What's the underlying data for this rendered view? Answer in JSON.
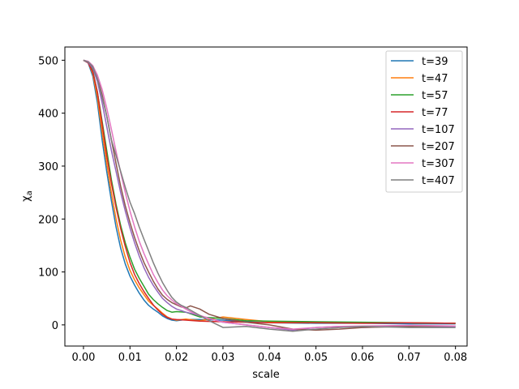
{
  "chart_data": {
    "type": "line",
    "title": "",
    "xlabel": "scale",
    "ylabel": "χa",
    "ylabel_main": "χ",
    "ylabel_sub": "a",
    "xlim": [
      -0.004,
      0.0825
    ],
    "ylim": [
      -40,
      525
    ],
    "xticks": [
      0.0,
      0.01,
      0.02,
      0.03,
      0.04,
      0.05,
      0.06,
      0.07,
      0.08
    ],
    "xtick_labels": [
      "0.00",
      "0.01",
      "0.02",
      "0.03",
      "0.04",
      "0.05",
      "0.06",
      "0.07",
      "0.08"
    ],
    "yticks": [
      0,
      100,
      200,
      300,
      400,
      500
    ],
    "ytick_labels": [
      "0",
      "100",
      "200",
      "300",
      "400",
      "500"
    ],
    "grid": false,
    "legend": "top-right",
    "series": [
      {
        "name": "t=39",
        "color": "#1f77b4",
        "x": [
          0.0,
          0.001,
          0.002,
          0.003,
          0.004,
          0.005,
          0.006,
          0.007,
          0.008,
          0.009,
          0.01,
          0.011,
          0.012,
          0.013,
          0.014,
          0.015,
          0.016,
          0.017,
          0.018,
          0.019,
          0.02,
          0.022,
          0.025,
          0.03,
          0.035,
          0.04,
          0.05,
          0.06,
          0.07,
          0.08
        ],
        "y": [
          500,
          495,
          470,
          420,
          350,
          290,
          235,
          185,
          145,
          115,
          92,
          75,
          60,
          47,
          37,
          30,
          24,
          17,
          12,
          9,
          8,
          10,
          10,
          9,
          6,
          4,
          3,
          3,
          2,
          2
        ]
      },
      {
        "name": "t=47",
        "color": "#ff7f0e",
        "x": [
          0.0,
          0.001,
          0.002,
          0.003,
          0.004,
          0.005,
          0.006,
          0.007,
          0.008,
          0.009,
          0.01,
          0.011,
          0.012,
          0.013,
          0.014,
          0.015,
          0.016,
          0.017,
          0.018,
          0.019,
          0.02,
          0.022,
          0.025,
          0.03,
          0.035,
          0.04,
          0.05,
          0.06,
          0.07,
          0.08
        ],
        "y": [
          500,
          496,
          475,
          430,
          365,
          305,
          250,
          200,
          160,
          128,
          103,
          85,
          70,
          57,
          45,
          37,
          30,
          22,
          15,
          11,
          9,
          11,
          8,
          15,
          10,
          6,
          5,
          4,
          4,
          3
        ]
      },
      {
        "name": "t=57",
        "color": "#2ca02c",
        "x": [
          0.0,
          0.001,
          0.002,
          0.003,
          0.004,
          0.005,
          0.006,
          0.007,
          0.008,
          0.009,
          0.01,
          0.011,
          0.012,
          0.013,
          0.014,
          0.015,
          0.016,
          0.017,
          0.018,
          0.019,
          0.02,
          0.022,
          0.025,
          0.03,
          0.035,
          0.04,
          0.05,
          0.06,
          0.07,
          0.08
        ],
        "y": [
          500,
          497,
          480,
          440,
          385,
          330,
          275,
          228,
          188,
          155,
          128,
          105,
          88,
          73,
          58,
          48,
          40,
          33,
          27,
          24,
          25,
          24,
          15,
          12,
          8,
          7,
          6,
          5,
          4,
          3
        ]
      },
      {
        "name": "t=77",
        "color": "#d62728",
        "x": [
          0.0,
          0.001,
          0.002,
          0.003,
          0.004,
          0.005,
          0.006,
          0.007,
          0.008,
          0.009,
          0.01,
          0.011,
          0.012,
          0.013,
          0.014,
          0.015,
          0.016,
          0.017,
          0.018,
          0.019,
          0.02,
          0.022,
          0.025,
          0.03,
          0.035,
          0.04,
          0.05,
          0.06,
          0.07,
          0.08
        ],
        "y": [
          500,
          495,
          478,
          440,
          380,
          320,
          268,
          222,
          182,
          148,
          118,
          95,
          78,
          63,
          50,
          38,
          28,
          20,
          14,
          11,
          10,
          9,
          7,
          6,
          5,
          4,
          4,
          3,
          4,
          3
        ]
      },
      {
        "name": "t=107",
        "color": "#9467bd",
        "x": [
          0.0,
          0.001,
          0.002,
          0.003,
          0.004,
          0.005,
          0.006,
          0.007,
          0.008,
          0.009,
          0.01,
          0.011,
          0.012,
          0.013,
          0.014,
          0.015,
          0.016,
          0.017,
          0.018,
          0.019,
          0.02,
          0.021,
          0.022,
          0.024,
          0.026,
          0.028,
          0.03,
          0.035,
          0.04,
          0.045,
          0.05,
          0.055,
          0.06,
          0.07,
          0.08
        ],
        "y": [
          500,
          496,
          485,
          460,
          420,
          375,
          330,
          290,
          250,
          215,
          183,
          155,
          130,
          108,
          90,
          75,
          62,
          50,
          42,
          35,
          30,
          27,
          24,
          20,
          15,
          10,
          5,
          0,
          -5,
          -10,
          -5,
          -3,
          -5,
          -2,
          -4
        ]
      },
      {
        "name": "t=207",
        "color": "#8c564b",
        "x": [
          0.0,
          0.001,
          0.002,
          0.003,
          0.004,
          0.005,
          0.006,
          0.007,
          0.008,
          0.009,
          0.01,
          0.011,
          0.012,
          0.013,
          0.014,
          0.015,
          0.016,
          0.017,
          0.018,
          0.019,
          0.02,
          0.021,
          0.022,
          0.023,
          0.025,
          0.027,
          0.03,
          0.035,
          0.04,
          0.045,
          0.05,
          0.055,
          0.06,
          0.07,
          0.08
        ],
        "y": [
          500,
          497,
          488,
          468,
          435,
          395,
          350,
          305,
          262,
          225,
          193,
          165,
          140,
          118,
          100,
          83,
          68,
          56,
          48,
          42,
          38,
          34,
          32,
          36,
          30,
          20,
          12,
          5,
          0,
          -8,
          -10,
          -8,
          -5,
          -3,
          -2
        ]
      },
      {
        "name": "t=307",
        "color": "#e377c2",
        "x": [
          0.0,
          0.001,
          0.002,
          0.003,
          0.004,
          0.005,
          0.006,
          0.007,
          0.008,
          0.009,
          0.01,
          0.011,
          0.012,
          0.013,
          0.014,
          0.015,
          0.016,
          0.017,
          0.018,
          0.019,
          0.02,
          0.021,
          0.022,
          0.023,
          0.025,
          0.027,
          0.03,
          0.035,
          0.04,
          0.045,
          0.05,
          0.055,
          0.06,
          0.07,
          0.08
        ],
        "y": [
          500,
          498,
          490,
          472,
          445,
          410,
          370,
          328,
          288,
          250,
          215,
          185,
          158,
          135,
          115,
          96,
          80,
          66,
          55,
          47,
          40,
          35,
          30,
          25,
          18,
          12,
          5,
          0,
          -5,
          -8,
          -5,
          -3,
          -2,
          -1,
          -2
        ]
      },
      {
        "name": "t=407",
        "color": "#7f7f7f",
        "x": [
          0.0,
          0.001,
          0.002,
          0.003,
          0.004,
          0.005,
          0.006,
          0.007,
          0.008,
          0.009,
          0.01,
          0.011,
          0.012,
          0.013,
          0.014,
          0.015,
          0.016,
          0.017,
          0.018,
          0.019,
          0.02,
          0.021,
          0.022,
          0.023,
          0.025,
          0.027,
          0.03,
          0.035,
          0.04,
          0.045,
          0.05,
          0.055,
          0.06,
          0.07,
          0.08
        ],
        "y": [
          500,
          497,
          488,
          465,
          430,
          395,
          350,
          320,
          290,
          260,
          232,
          210,
          185,
          162,
          140,
          118,
          98,
          80,
          65,
          52,
          43,
          37,
          33,
          28,
          18,
          8,
          -5,
          -3,
          -8,
          -12,
          -8,
          -5,
          -3,
          -5,
          -5
        ]
      }
    ]
  }
}
